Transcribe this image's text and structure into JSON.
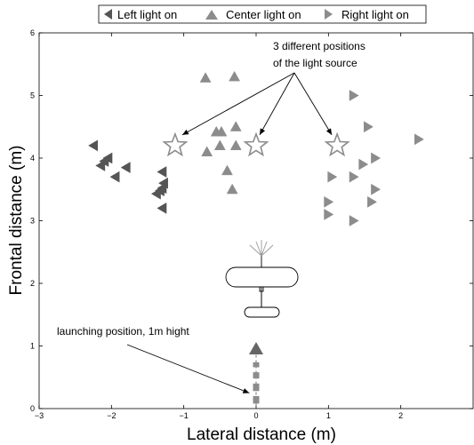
{
  "chart_data": {
    "type": "scatter",
    "xlabel": "Lateral distance (m)",
    "ylabel": "Frontal distance (m)",
    "xlim": [
      -3,
      3
    ],
    "ylim": [
      0,
      6
    ],
    "xticks": [
      "−3",
      "−2",
      "−1",
      "0",
      "1",
      "2"
    ],
    "yticks": [
      "0",
      "1",
      "2",
      "3",
      "4",
      "5",
      "6"
    ],
    "grid": false,
    "legend_position": "top",
    "series": [
      {
        "name": "Left light on",
        "marker": "triangle-left",
        "color": "#555555",
        "points": [
          [
            -2.25,
            4.2
          ],
          [
            -2.05,
            4.0
          ],
          [
            -2.1,
            3.95
          ],
          [
            -2.15,
            3.88
          ],
          [
            -1.8,
            3.85
          ],
          [
            -1.95,
            3.7
          ],
          [
            -1.3,
            3.78
          ],
          [
            -1.28,
            3.6
          ],
          [
            -1.3,
            3.52
          ],
          [
            -1.33,
            3.48
          ],
          [
            -1.38,
            3.43
          ],
          [
            -1.3,
            3.2
          ]
        ]
      },
      {
        "name": "Center light on",
        "marker": "triangle-up",
        "color": "#8c8c8c",
        "points": [
          [
            -0.7,
            5.28
          ],
          [
            -0.3,
            5.3
          ],
          [
            -0.55,
            4.42
          ],
          [
            -0.48,
            4.42
          ],
          [
            -0.28,
            4.5
          ],
          [
            -0.68,
            4.1
          ],
          [
            -0.5,
            4.2
          ],
          [
            -0.28,
            4.2
          ],
          [
            -0.4,
            3.8
          ],
          [
            -0.33,
            3.5
          ]
        ]
      },
      {
        "name": "Right light on",
        "marker": "triangle-right",
        "color": "#8c8c8c",
        "points": [
          [
            1.35,
            5.0
          ],
          [
            1.55,
            4.5
          ],
          [
            2.25,
            4.3
          ],
          [
            1.65,
            4.0
          ],
          [
            1.48,
            3.9
          ],
          [
            1.05,
            3.7
          ],
          [
            1.35,
            3.7
          ],
          [
            1.65,
            3.5
          ],
          [
            1.0,
            3.3
          ],
          [
            1.6,
            3.3
          ],
          [
            1.0,
            3.1
          ],
          [
            1.35,
            3.0
          ]
        ]
      }
    ],
    "light_positions": [
      [
        -1.12,
        4.2
      ],
      [
        0.0,
        4.2
      ],
      [
        1.12,
        4.2
      ]
    ],
    "annotations": [
      {
        "text_lines": [
          "3 different positions",
          "of the light source"
        ],
        "points_to": [
          [
            -1.12,
            4.2
          ],
          [
            0.0,
            4.2
          ],
          [
            1.12,
            4.2
          ]
        ]
      },
      {
        "text_lines": [
          "launching position, 1m hight"
        ],
        "points_to": [
          [
            -0.02,
            0.22
          ]
        ]
      }
    ],
    "launch_track": {
      "x": 0.0,
      "start_marker_y": 0.95,
      "segments": [
        [
          0.08,
          0.2
        ],
        [
          0.28,
          0.4
        ],
        [
          0.48,
          0.58
        ],
        [
          0.66,
          0.74
        ]
      ]
    }
  }
}
